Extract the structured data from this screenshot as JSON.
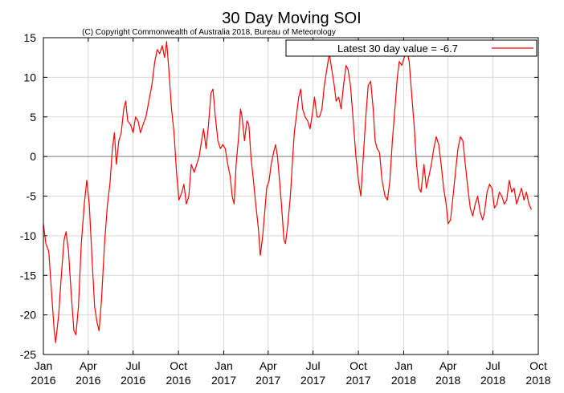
{
  "chart_data": {
    "type": "line",
    "title": "30 Day Moving SOI",
    "subtitle": "(C) Copyright Commonwealth of Australia 2018, Bureau of Meteorology",
    "xlabel": "",
    "ylabel": "",
    "ylim": [
      -25,
      15
    ],
    "xlim": [
      "2016-01-01",
      "2018-10-01"
    ],
    "grid": true,
    "legend_position": "top-right",
    "y_ticks": [
      "15",
      "10",
      "5",
      "0",
      "-5",
      "-10",
      "-15",
      "-20",
      "-25"
    ],
    "x_ticks": [
      {
        "month": "Jan",
        "year": "2016",
        "date": "2016-01-01"
      },
      {
        "month": "Apr",
        "year": "2016",
        "date": "2016-04-01"
      },
      {
        "month": "Jul",
        "year": "2016",
        "date": "2016-07-01"
      },
      {
        "month": "Oct",
        "year": "2016",
        "date": "2016-10-01"
      },
      {
        "month": "Jan",
        "year": "2017",
        "date": "2017-01-01"
      },
      {
        "month": "Apr",
        "year": "2017",
        "date": "2017-04-01"
      },
      {
        "month": "Jul",
        "year": "2017",
        "date": "2017-07-01"
      },
      {
        "month": "Oct",
        "year": "2017",
        "date": "2017-10-01"
      },
      {
        "month": "Jan",
        "year": "2018",
        "date": "2018-01-01"
      },
      {
        "month": "Apr",
        "year": "2018",
        "date": "2018-04-01"
      },
      {
        "month": "Jul",
        "year": "2018",
        "date": "2018-07-01"
      },
      {
        "month": "Oct",
        "year": "2018",
        "date": "2018-10-01"
      }
    ],
    "series": [
      {
        "name": "Latest 30 day value = -6.7",
        "color": "#ff0000",
        "points": [
          [
            "2016-01-01",
            -8.5
          ],
          [
            "2016-01-06",
            -11.0
          ],
          [
            "2016-01-12",
            -12.0
          ],
          [
            "2016-01-18",
            -17.5
          ],
          [
            "2016-01-23",
            -22.0
          ],
          [
            "2016-01-26",
            -23.5
          ],
          [
            "2016-02-01",
            -20.0
          ],
          [
            "2016-02-07",
            -14.5
          ],
          [
            "2016-02-12",
            -10.5
          ],
          [
            "2016-02-16",
            -9.5
          ],
          [
            "2016-02-21",
            -12.0
          ],
          [
            "2016-02-26",
            -17.0
          ],
          [
            "2016-03-03",
            -22.0
          ],
          [
            "2016-03-07",
            -22.5
          ],
          [
            "2016-03-12",
            -19.0
          ],
          [
            "2016-03-18",
            -11.0
          ],
          [
            "2016-03-24",
            -6.0
          ],
          [
            "2016-03-29",
            -3.0
          ],
          [
            "2016-04-03",
            -6.0
          ],
          [
            "2016-04-08",
            -12.0
          ],
          [
            "2016-04-14",
            -19.0
          ],
          [
            "2016-04-19",
            -21.0
          ],
          [
            "2016-04-23",
            -22.0
          ],
          [
            "2016-04-28",
            -18.0
          ],
          [
            "2016-05-04",
            -11.0
          ],
          [
            "2016-05-10",
            -6.0
          ],
          [
            "2016-05-15",
            -3.5
          ],
          [
            "2016-05-20",
            1.0
          ],
          [
            "2016-05-24",
            3.0
          ],
          [
            "2016-05-28",
            -1.0
          ],
          [
            "2016-06-02",
            2.0
          ],
          [
            "2016-06-07",
            3.0
          ],
          [
            "2016-06-12",
            6.0
          ],
          [
            "2016-06-16",
            7.0
          ],
          [
            "2016-06-20",
            4.5
          ],
          [
            "2016-06-26",
            4.0
          ],
          [
            "2016-07-01",
            3.0
          ],
          [
            "2016-07-06",
            5.0
          ],
          [
            "2016-07-11",
            4.5
          ],
          [
            "2016-07-16",
            3.0
          ],
          [
            "2016-07-21",
            4.0
          ],
          [
            "2016-07-27",
            5.0
          ],
          [
            "2016-08-02",
            7.0
          ],
          [
            "2016-08-08",
            9.0
          ],
          [
            "2016-08-14",
            12.0
          ],
          [
            "2016-08-19",
            13.5
          ],
          [
            "2016-08-24",
            13.0
          ],
          [
            "2016-08-29",
            14.0
          ],
          [
            "2016-09-03",
            12.5
          ],
          [
            "2016-09-07",
            14.5
          ],
          [
            "2016-09-12",
            10.5
          ],
          [
            "2016-09-17",
            6.0
          ],
          [
            "2016-09-22",
            3.0
          ],
          [
            "2016-09-27",
            -2.0
          ],
          [
            "2016-10-02",
            -5.5
          ],
          [
            "2016-10-08",
            -4.5
          ],
          [
            "2016-10-12",
            -3.5
          ],
          [
            "2016-10-17",
            -6.0
          ],
          [
            "2016-10-22",
            -5.0
          ],
          [
            "2016-10-27",
            -1.0
          ],
          [
            "2016-11-02",
            -2.0
          ],
          [
            "2016-11-07",
            -1.0
          ],
          [
            "2016-11-12",
            0.0
          ],
          [
            "2016-11-17",
            2.0
          ],
          [
            "2016-11-21",
            3.5
          ],
          [
            "2016-11-26",
            1.0
          ],
          [
            "2016-12-01",
            4.0
          ],
          [
            "2016-12-06",
            8.0
          ],
          [
            "2016-12-10",
            8.5
          ],
          [
            "2016-12-15",
            5.0
          ],
          [
            "2016-12-20",
            2.0
          ],
          [
            "2016-12-25",
            1.0
          ],
          [
            "2016-12-30",
            1.5
          ],
          [
            "2017-01-04",
            1.0
          ],
          [
            "2017-01-09",
            -1.0
          ],
          [
            "2017-01-14",
            -2.5
          ],
          [
            "2017-01-18",
            -5.0
          ],
          [
            "2017-01-22",
            -6.0
          ],
          [
            "2017-01-26",
            -1.0
          ],
          [
            "2017-01-31",
            2.5
          ],
          [
            "2017-02-04",
            6.0
          ],
          [
            "2017-02-07",
            5.0
          ],
          [
            "2017-02-12",
            2.0
          ],
          [
            "2017-02-17",
            4.5
          ],
          [
            "2017-02-21",
            4.0
          ],
          [
            "2017-02-25",
            0.0
          ],
          [
            "2017-03-02",
            -3.0
          ],
          [
            "2017-03-06",
            -5.5
          ],
          [
            "2017-03-12",
            -9.0
          ],
          [
            "2017-03-16",
            -12.5
          ],
          [
            "2017-03-21",
            -10.0
          ],
          [
            "2017-03-25",
            -7.0
          ],
          [
            "2017-03-29",
            -4.0
          ],
          [
            "2017-04-03",
            -3.0
          ],
          [
            "2017-04-07",
            -1.0
          ],
          [
            "2017-04-12",
            0.5
          ],
          [
            "2017-04-16",
            1.5
          ],
          [
            "2017-04-20",
            0.0
          ],
          [
            "2017-04-24",
            -3.0
          ],
          [
            "2017-04-28",
            -6.0
          ],
          [
            "2017-05-03",
            -10.5
          ],
          [
            "2017-05-06",
            -11.0
          ],
          [
            "2017-05-11",
            -8.5
          ],
          [
            "2017-05-16",
            -5.0
          ],
          [
            "2017-05-20",
            -1.0
          ],
          [
            "2017-05-24",
            3.0
          ],
          [
            "2017-05-29",
            5.5
          ],
          [
            "2017-06-02",
            7.5
          ],
          [
            "2017-06-06",
            8.5
          ],
          [
            "2017-06-10",
            6.0
          ],
          [
            "2017-06-15",
            5.0
          ],
          [
            "2017-06-20",
            4.5
          ],
          [
            "2017-06-25",
            3.5
          ],
          [
            "2017-06-30",
            5.5
          ],
          [
            "2017-07-04",
            7.5
          ],
          [
            "2017-07-09",
            5.0
          ],
          [
            "2017-07-14",
            5.0
          ],
          [
            "2017-07-19",
            6.0
          ],
          [
            "2017-07-24",
            9.0
          ],
          [
            "2017-07-29",
            11.0
          ],
          [
            "2017-08-03",
            13.0
          ],
          [
            "2017-08-08",
            11.0
          ],
          [
            "2017-08-13",
            9.0
          ],
          [
            "2017-08-17",
            7.0
          ],
          [
            "2017-08-22",
            7.5
          ],
          [
            "2017-08-27",
            6.0
          ],
          [
            "2017-09-01",
            9.0
          ],
          [
            "2017-09-06",
            11.5
          ],
          [
            "2017-09-10",
            11.0
          ],
          [
            "2017-09-15",
            9.0
          ],
          [
            "2017-09-20",
            5.0
          ],
          [
            "2017-09-26",
            0.0
          ],
          [
            "2017-10-01",
            -3.0
          ],
          [
            "2017-10-06",
            -5.0
          ],
          [
            "2017-10-11",
            0.0
          ],
          [
            "2017-10-16",
            5.0
          ],
          [
            "2017-10-21",
            9.0
          ],
          [
            "2017-10-26",
            9.5
          ],
          [
            "2017-10-31",
            6.0
          ],
          [
            "2017-11-04",
            2.0
          ],
          [
            "2017-11-08",
            1.0
          ],
          [
            "2017-11-13",
            0.5
          ],
          [
            "2017-11-18",
            -3.0
          ],
          [
            "2017-11-24",
            -5.0
          ],
          [
            "2017-11-29",
            -5.5
          ],
          [
            "2017-12-04",
            -3.0
          ],
          [
            "2017-12-09",
            2.0
          ],
          [
            "2017-12-14",
            6.0
          ],
          [
            "2017-12-19",
            10.0
          ],
          [
            "2017-12-23",
            12.0
          ],
          [
            "2017-12-28",
            11.5
          ],
          [
            "2018-01-02",
            12.5
          ],
          [
            "2018-01-07",
            13.5
          ],
          [
            "2018-01-12",
            12.0
          ],
          [
            "2018-01-17",
            8.0
          ],
          [
            "2018-01-22",
            4.0
          ],
          [
            "2018-01-27",
            -1.0
          ],
          [
            "2018-02-01",
            -4.0
          ],
          [
            "2018-02-05",
            -4.5
          ],
          [
            "2018-02-11",
            -1.0
          ],
          [
            "2018-02-16",
            -4.0
          ],
          [
            "2018-02-21",
            -2.5
          ],
          [
            "2018-02-26",
            -1.0
          ],
          [
            "2018-03-03",
            1.0
          ],
          [
            "2018-03-08",
            2.5
          ],
          [
            "2018-03-13",
            1.5
          ],
          [
            "2018-03-18",
            -1.0
          ],
          [
            "2018-03-23",
            -4.0
          ],
          [
            "2018-03-28",
            -6.0
          ],
          [
            "2018-04-01",
            -8.5
          ],
          [
            "2018-04-06",
            -8.0
          ],
          [
            "2018-04-11",
            -5.0
          ],
          [
            "2018-04-16",
            -2.0
          ],
          [
            "2018-04-21",
            1.0
          ],
          [
            "2018-04-26",
            2.5
          ],
          [
            "2018-05-01",
            2.0
          ],
          [
            "2018-05-06",
            -1.0
          ],
          [
            "2018-05-11",
            -4.0
          ],
          [
            "2018-05-16",
            -6.5
          ],
          [
            "2018-05-21",
            -7.5
          ],
          [
            "2018-05-26",
            -6.0
          ],
          [
            "2018-05-31",
            -5.0
          ],
          [
            "2018-06-05",
            -7.0
          ],
          [
            "2018-06-10",
            -8.0
          ],
          [
            "2018-06-14",
            -7.0
          ],
          [
            "2018-06-19",
            -4.5
          ],
          [
            "2018-06-24",
            -3.5
          ],
          [
            "2018-06-29",
            -4.0
          ],
          [
            "2018-07-04",
            -6.5
          ],
          [
            "2018-07-09",
            -6.0
          ],
          [
            "2018-07-14",
            -4.5
          ],
          [
            "2018-07-19",
            -5.0
          ],
          [
            "2018-07-24",
            -6.0
          ],
          [
            "2018-07-29",
            -5.5
          ],
          [
            "2018-08-03",
            -3.0
          ],
          [
            "2018-08-08",
            -4.5
          ],
          [
            "2018-08-13",
            -4.0
          ],
          [
            "2018-08-18",
            -6.0
          ],
          [
            "2018-08-23",
            -5.0
          ],
          [
            "2018-08-28",
            -4.0
          ],
          [
            "2018-09-02",
            -5.5
          ],
          [
            "2018-09-07",
            -4.5
          ],
          [
            "2018-09-12",
            -6.0
          ],
          [
            "2018-09-17",
            -6.7
          ]
        ]
      }
    ]
  }
}
